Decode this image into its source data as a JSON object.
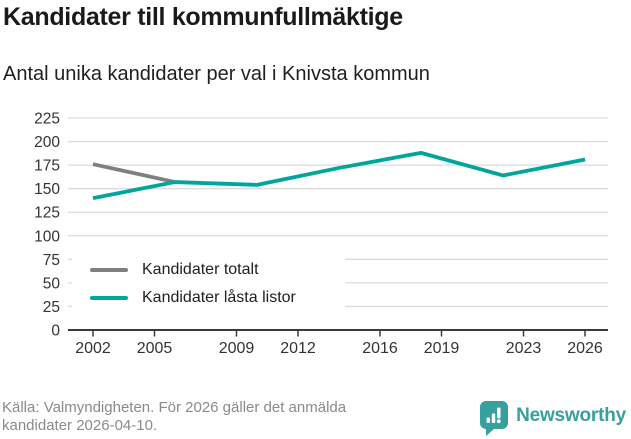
{
  "header": {
    "title": "Kandidater till kommunfullmäktige",
    "subtitle": "Antal unika kandidater per val i Knivsta kommun"
  },
  "chart_data": {
    "type": "line",
    "title": "Kandidater till kommunfullmäktige",
    "subtitle": "Antal unika kandidater per val i Knivsta kommun",
    "xlabel": "",
    "ylabel": "",
    "xlim": [
      2002,
      2026
    ],
    "ylim": [
      0,
      235
    ],
    "grid": true,
    "legend_position": "lower-left",
    "xticks": [
      2002,
      2005,
      2009,
      2012,
      2016,
      2019,
      2023,
      2026
    ],
    "yticks": [
      0,
      25,
      50,
      75,
      100,
      125,
      150,
      175,
      200,
      225
    ],
    "series": [
      {
        "name": "Kandidater totalt",
        "color": "#7f7f7f",
        "x": [
          2002,
          2006
        ],
        "values": [
          176,
          157
        ]
      },
      {
        "name": "Kandidater låsta listor",
        "color": "#00a69b",
        "x": [
          2002,
          2006,
          2010,
          2014,
          2018,
          2022,
          2026
        ],
        "values": [
          140,
          157,
          154,
          172,
          188,
          164,
          181
        ]
      }
    ]
  },
  "colors": {
    "grid": "#dcdcdc",
    "axis": "#3a3a3a",
    "tick_label": "#333333",
    "brand_teal": "#37a09c",
    "source_gray": "#8a8a8a"
  },
  "footer": {
    "source": "Källa: Valmyndigheten. För 2026 gäller det anmälda kandidater 2026-04-10.",
    "brand": "Newsworthy"
  }
}
